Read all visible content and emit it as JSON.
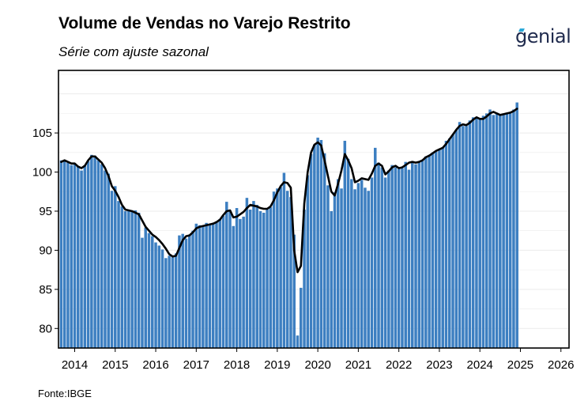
{
  "title": "Volume de Vendas no Varejo Restrito",
  "subtitle": "Série com ajuste sazonal",
  "logo_text": "genial",
  "source": "Fonte:IBGE",
  "chart_data": {
    "type": "bar",
    "title": "Volume de Vendas no Varejo Restrito",
    "subtitle": "Série com ajuste sazonal",
    "xlabel": "",
    "ylabel": "",
    "x_start": "2013-09",
    "frequency": "monthly",
    "xlim": [
      2013.6,
      2026.2
    ],
    "ylim": [
      77.5,
      113
    ],
    "grid": true,
    "legend": "none",
    "colors": {
      "bars": "#3d7fc1",
      "line": "#000000",
      "grid": "#ebebeb"
    },
    "y_ticks": [
      80,
      85,
      90,
      95,
      100,
      105
    ],
    "x_ticks": [
      "2014",
      "2015",
      "2016",
      "2017",
      "2018",
      "2019",
      "2020",
      "2021",
      "2022",
      "2023",
      "2024",
      "2025",
      "2026"
    ],
    "series": [
      {
        "type": "bar",
        "values": [
          101.5,
          101.4,
          101.2,
          100.9,
          101.0,
          100.7,
          100.2,
          100.8,
          101.4,
          102.2,
          102.1,
          101.5,
          101.0,
          100.2,
          99.8,
          97.6,
          98.2,
          96.3,
          95.6,
          95.0,
          95.2,
          94.9,
          95.1,
          94.8,
          91.6,
          92.9,
          92.2,
          91.8,
          91.0,
          90.6,
          90.1,
          89.0,
          89.3,
          89.1,
          89.6,
          91.9,
          92.1,
          91.5,
          92.0,
          92.5,
          93.4,
          93.2,
          93.1,
          93.5,
          93.3,
          93.5,
          93.7,
          94.0,
          94.4,
          96.2,
          95.1,
          93.1,
          95.4,
          94.0,
          94.3,
          96.7,
          95.2,
          96.3,
          95.8,
          95.0,
          94.8,
          95.2,
          95.5,
          97.5,
          97.9,
          98.1,
          99.9,
          97.6,
          96.8,
          92.0,
          79.1,
          85.2,
          95.2,
          99.6,
          102.3,
          103.5,
          104.4,
          104.1,
          102.4,
          98.3,
          95.0,
          97.4,
          99.1,
          97.9,
          104.0,
          101.7,
          99.1,
          97.8,
          98.6,
          99.0,
          98.0,
          97.6,
          99.3,
          103.1,
          101.2,
          100.6,
          99.3,
          100.2,
          100.9,
          100.6,
          100.4,
          100.5,
          101.3,
          100.3,
          101.4,
          101.0,
          101.2,
          101.5,
          102.0,
          102.2,
          102.5,
          102.6,
          102.9,
          103.2,
          104.0,
          104.3,
          104.8,
          105.4,
          106.4,
          105.9,
          105.9,
          106.6,
          107.0,
          106.9,
          106.8,
          107.2,
          107.5,
          108.0,
          107.3,
          107.6,
          107.3,
          107.4,
          107.6,
          107.5,
          108.0,
          108.9
        ]
      },
      {
        "type": "line",
        "name": "",
        "values": [
          101.3,
          101.5,
          101.3,
          101.1,
          101.1,
          100.7,
          100.5,
          100.8,
          101.5,
          102.0,
          102.0,
          101.6,
          101.2,
          100.5,
          99.5,
          98.2,
          97.6,
          96.8,
          95.8,
          95.2,
          95.1,
          95.0,
          94.8,
          94.6,
          93.8,
          93.0,
          92.5,
          92.0,
          91.7,
          91.3,
          90.8,
          90.2,
          89.5,
          89.2,
          89.3,
          90.3,
          91.3,
          91.8,
          91.9,
          92.3,
          92.8,
          93.0,
          93.1,
          93.2,
          93.3,
          93.4,
          93.6,
          93.9,
          94.5,
          95.0,
          95.1,
          94.2,
          94.3,
          94.6,
          94.9,
          95.4,
          95.8,
          95.7,
          95.6,
          95.4,
          95.3,
          95.3,
          95.6,
          96.4,
          97.4,
          98.2,
          98.7,
          98.6,
          98.0,
          90.0,
          87.2,
          88.0,
          96.0,
          100.0,
          102.5,
          103.5,
          103.8,
          103.4,
          101.5,
          99.5,
          97.5,
          97.0,
          98.5,
          100.2,
          102.3,
          101.5,
          100.5,
          98.7,
          98.9,
          99.2,
          99.1,
          99.0,
          99.8,
          100.8,
          101.1,
          100.8,
          99.7,
          100.1,
          100.6,
          100.8,
          100.5,
          100.6,
          100.9,
          101.2,
          101.3,
          101.2,
          101.3,
          101.5,
          101.9,
          102.1,
          102.4,
          102.7,
          102.9,
          103.1,
          103.6,
          104.2,
          104.8,
          105.4,
          105.9,
          106.1,
          106.0,
          106.3,
          106.7,
          107.0,
          106.8,
          106.8,
          107.1,
          107.5,
          107.7,
          107.5,
          107.3,
          107.4,
          107.5,
          107.6,
          107.8,
          108.1
        ]
      }
    ]
  }
}
